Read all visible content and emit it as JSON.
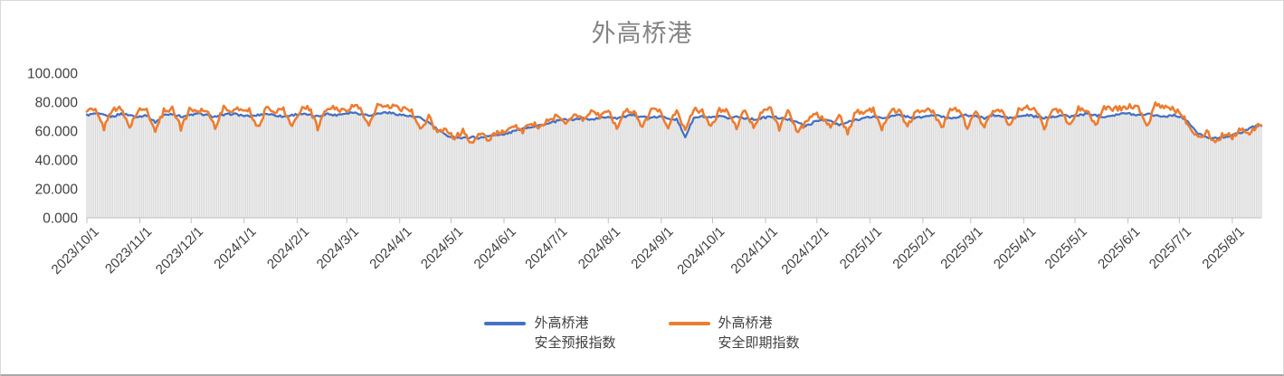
{
  "chart_data": {
    "type": "line",
    "title": "外高桥港",
    "ylim": [
      0,
      100
    ],
    "y_tick_values": [
      0,
      20,
      40,
      60,
      80,
      100
    ],
    "y_tick_labels": [
      "0.000",
      "20.000",
      "40.000",
      "60.000",
      "80.000",
      "100.000"
    ],
    "x_tick_labels": [
      "2023/10/1",
      "2023/11/1",
      "2023/12/1",
      "2024/1/1",
      "2024/2/1",
      "2024/3/1",
      "2024/4/1",
      "2024/5/1",
      "2024/6/1",
      "2024/7/1",
      "2024/8/1",
      "2024/9/1",
      "2024/10/1",
      "2024/11/1",
      "2024/12/1",
      "2025/1/1",
      "2025/2/1",
      "2025/3/1",
      "2025/4/1",
      "2025/5/1",
      "2025/6/1",
      "2025/7/1",
      "2025/8/1"
    ],
    "month_day_offsets": [
      0,
      31,
      61,
      92,
      123,
      152,
      183,
      213,
      244,
      274,
      305,
      336,
      366,
      397,
      427,
      458,
      489,
      517,
      548,
      578,
      609,
      639,
      670
    ],
    "total_days": 688,
    "sample_interval_days": 5,
    "grid": false,
    "legend_position": "bottom",
    "drop_lines": {
      "present": true,
      "color": "#D9D9D9"
    },
    "colors": {
      "title": "#848484",
      "axis_text": "#404040",
      "axis_line": "#BFBFBF"
    },
    "series": [
      {
        "name": "外高桥港安全预报指数",
        "legend_lines": [
          "外高桥港",
          "安全预报指数"
        ],
        "color": "#4472C4",
        "line_width": 2.3,
        "daily_noise": 0.7,
        "values": [
          71,
          72,
          71,
          70,
          72,
          71,
          70,
          71,
          66,
          71,
          72,
          70,
          71,
          72,
          71,
          70,
          71,
          72,
          71,
          70,
          71,
          72,
          71,
          70,
          71,
          72,
          71,
          70,
          72,
          71,
          72,
          73,
          72,
          71,
          72,
          73,
          72,
          71,
          70,
          69,
          66,
          61,
          57,
          56,
          55,
          56,
          55,
          57,
          57,
          58,
          60,
          62,
          63,
          64,
          65,
          67,
          68,
          68,
          69,
          68,
          69,
          70,
          69,
          70,
          71,
          70,
          69,
          70,
          69,
          68,
          56,
          69,
          70,
          69,
          70,
          69,
          70,
          69,
          68,
          69,
          70,
          69,
          68,
          67,
          63,
          66,
          68,
          67,
          64,
          66,
          68,
          69,
          70,
          69,
          70,
          71,
          70,
          69,
          70,
          71,
          70,
          69,
          70,
          71,
          70,
          69,
          71,
          70,
          69,
          70,
          71,
          70,
          69,
          70,
          71,
          70,
          71,
          72,
          71,
          70,
          71,
          72,
          72,
          71,
          72,
          71,
          70,
          71,
          70,
          65,
          58,
          56,
          55,
          56,
          57,
          59,
          62,
          64
        ]
      },
      {
        "name": "外高桥港安全即期指数",
        "legend_lines": [
          "外高桥港",
          "安全即期指数"
        ],
        "color": "#ED7D31",
        "line_width": 2.6,
        "daily_noise": 1.8,
        "values": [
          75,
          74,
          62,
          76,
          75,
          63,
          74,
          75,
          60,
          74,
          76,
          62,
          75,
          74,
          75,
          63,
          76,
          74,
          75,
          75,
          62,
          76,
          74,
          75,
          63,
          75,
          76,
          62,
          75,
          76,
          74,
          77,
          76,
          63,
          78,
          76,
          77,
          75,
          74,
          60,
          70,
          58,
          62,
          55,
          60,
          52,
          58,
          54,
          60,
          58,
          64,
          60,
          66,
          62,
          68,
          70,
          65,
          72,
          68,
          74,
          70,
          74,
          62,
          75,
          73,
          63,
          74,
          75,
          63,
          74,
          60,
          75,
          74,
          62,
          75,
          74,
          62,
          75,
          63,
          74,
          75,
          62,
          74,
          60,
          65,
          72,
          70,
          62,
          72,
          58,
          74,
          73,
          75,
          62,
          74,
          75,
          63,
          74,
          75,
          74,
          62,
          75,
          74,
          63,
          75,
          62,
          74,
          75,
          63,
          75,
          76,
          75,
          62,
          74,
          75,
          63,
          76,
          75,
          63,
          76,
          75,
          76,
          77,
          76,
          63,
          78,
          76,
          75,
          73,
          62,
          55,
          60,
          52,
          58,
          56,
          62,
          58,
          64
        ]
      }
    ]
  }
}
